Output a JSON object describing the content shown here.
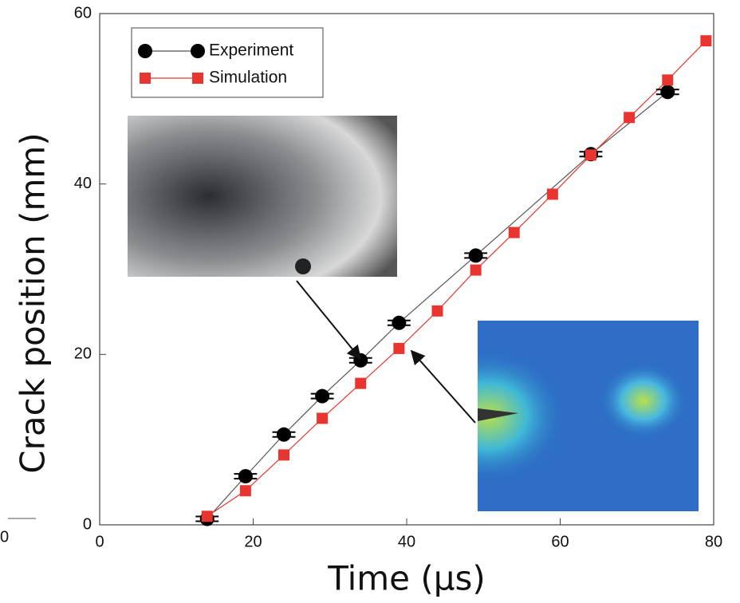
{
  "chart_data": {
    "type": "line",
    "x_label": "Time (μs)",
    "y_label": "Crack position (mm)",
    "fragment_label": "0",
    "xlim": [
      0,
      80
    ],
    "xticks": [
      0,
      20,
      40,
      60,
      80
    ],
    "ylim": [
      0,
      60
    ],
    "yticks": [
      0,
      20,
      40,
      60
    ],
    "legend": "upper left",
    "series": [
      {
        "name": "Experiment",
        "color": "#000000",
        "marker": "circle",
        "x": [
          14,
          19,
          24,
          29,
          34,
          39,
          49,
          64,
          74
        ],
        "values": [
          0.7,
          5.7,
          10.6,
          15.1,
          19.3,
          23.7,
          31.6,
          43.5,
          50.8
        ],
        "xerr": [
          1.5,
          1.5,
          1.5,
          1.5,
          1.5,
          1.5,
          1.5,
          1.5,
          1.5
        ]
      },
      {
        "name": "Simulation",
        "color": "#e8352f",
        "marker": "square",
        "x": [
          14,
          19,
          24,
          29,
          34,
          39,
          44,
          49,
          54,
          59,
          64,
          69,
          74,
          79
        ],
        "values": [
          1.0,
          4.0,
          8.2,
          12.5,
          16.6,
          20.7,
          25.1,
          29.9,
          34.3,
          38.8,
          43.4,
          47.8,
          52.2,
          56.8
        ]
      }
    ]
  }
}
